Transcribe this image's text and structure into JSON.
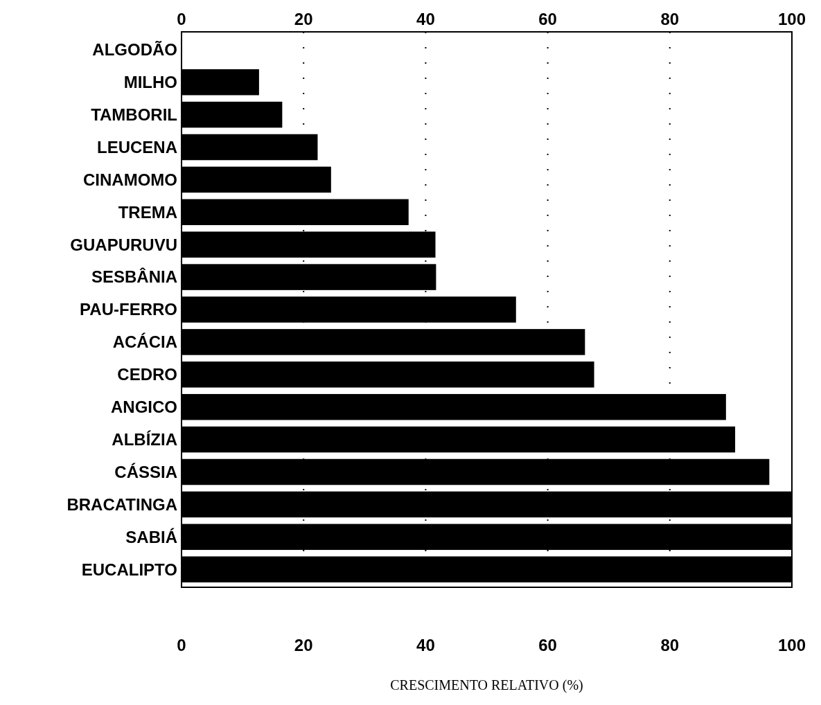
{
  "chart_data": {
    "type": "bar",
    "orientation": "horizontal",
    "xlabel": "CRESCIMENTO RELATIVO (%)",
    "categories": [
      "ALGODÃO",
      "MILHO",
      "TAMBORIL",
      "LEUCENA",
      "CINAMOMO",
      "TREMA",
      "GUAPURUVU",
      "SESBÂNIA",
      "PAU-FERRO",
      "ACÁCIA",
      "CEDRO",
      "ANGICO",
      "ALBÍZIA",
      "CÁSSIA",
      "BRACATINGA",
      "SABIÁ",
      "EUCALIPTO"
    ],
    "values": [
      0,
      12.7,
      16.5,
      22.3,
      24.5,
      37.2,
      41.6,
      41.7,
      54.8,
      66.1,
      67.6,
      89.2,
      90.7,
      96.3,
      100,
      100,
      100
    ],
    "color": "#000000",
    "xlim": [
      0,
      100
    ],
    "xticks": [
      0,
      20,
      40,
      60,
      80,
      100
    ],
    "x2lim": [
      0,
      100
    ],
    "x2ticks": [
      0,
      20,
      40,
      60,
      80,
      100
    ],
    "grid": "x"
  }
}
